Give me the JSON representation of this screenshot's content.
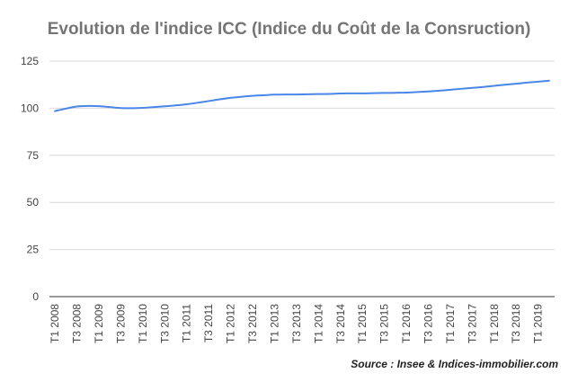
{
  "chart_data": {
    "type": "line",
    "title": "Evolution de l'indice ICC (Indice du Coût de la Consruction)",
    "xlabel": "",
    "ylabel": "",
    "source": "Source : Insee & Indices-immobilier.com",
    "ylim": [
      0,
      125
    ],
    "yticks": [
      0,
      25,
      50,
      75,
      100,
      125
    ],
    "grid": true,
    "colors": {
      "line": "#4a86e8",
      "grid": "#d9d9d9",
      "axis": "#333333"
    },
    "x_tick_labels": [
      "T1 2008",
      "T3 2008",
      "T1 2009",
      "T3 2009",
      "T1 2010",
      "T3 2010",
      "T1 2011",
      "T3 2011",
      "T1 2012",
      "T3 2012",
      "T1 2013",
      "T3 2013",
      "T1 2014",
      "T3 2014",
      "T1 2015",
      "T3 2015",
      "T1 2016",
      "T3 2016",
      "T1 2017",
      "T3 2017",
      "T1 2018",
      "T3 2018",
      "T1 2019"
    ],
    "x": [
      "T1 2008",
      "T2 2008",
      "T3 2008",
      "T4 2008",
      "T1 2009",
      "T2 2009",
      "T3 2009",
      "T4 2009",
      "T1 2010",
      "T2 2010",
      "T3 2010",
      "T4 2010",
      "T1 2011",
      "T2 2011",
      "T3 2011",
      "T4 2011",
      "T1 2012",
      "T2 2012",
      "T3 2012",
      "T4 2012",
      "T1 2013",
      "T2 2013",
      "T3 2013",
      "T4 2013",
      "T1 2014",
      "T2 2014",
      "T3 2014",
      "T4 2014",
      "T1 2015",
      "T2 2015",
      "T3 2015",
      "T4 2015",
      "T1 2016",
      "T2 2016",
      "T3 2016",
      "T4 2016",
      "T1 2017",
      "T2 2017",
      "T3 2017",
      "T4 2017",
      "T1 2018",
      "T2 2018",
      "T3 2018",
      "T4 2018",
      "T1 2019",
      "T2 2019"
    ],
    "series": [
      {
        "values": [
          98.5,
          99.8,
          100.9,
          101.2,
          101.1,
          100.6,
          100.1,
          100.0,
          100.2,
          100.6,
          101.0,
          101.5,
          102.1,
          102.9,
          103.8,
          104.7,
          105.5,
          106.1,
          106.6,
          106.9,
          107.2,
          107.3,
          107.3,
          107.4,
          107.5,
          107.6,
          107.8,
          107.9,
          107.9,
          108.0,
          108.1,
          108.2,
          108.3,
          108.6,
          108.9,
          109.3,
          109.8,
          110.3,
          110.8,
          111.3,
          111.9,
          112.5,
          113.0,
          113.6,
          114.1,
          114.6
        ]
      }
    ]
  }
}
